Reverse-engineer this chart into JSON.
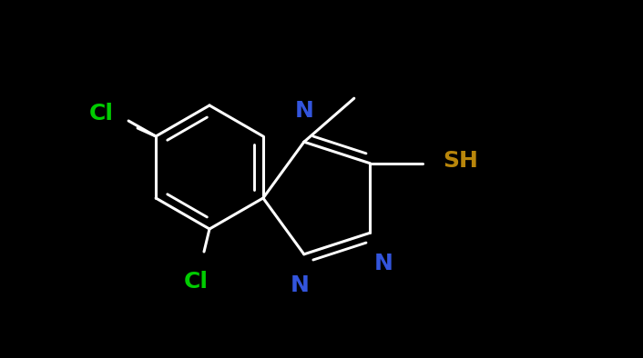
{
  "background_color": "#000000",
  "bond_color": "#ffffff",
  "N_color": "#3355dd",
  "Cl_color": "#00cc00",
  "S_color": "#b8860b",
  "C_color": "#ffffff",
  "bond_width": 2.2,
  "figsize": [
    7.06,
    3.94
  ],
  "dpi": 100,
  "xlim": [
    0,
    7.06
  ],
  "ylim": [
    0,
    3.94
  ],
  "font_size": 17
}
